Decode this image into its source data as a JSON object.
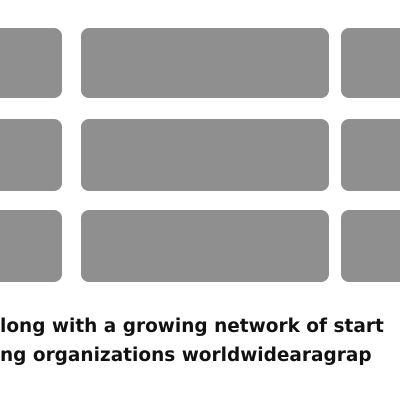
{
  "tile_grid": {
    "rows": 3,
    "columns": 3,
    "tile_color": "#8f8f8f",
    "background_color": "#ffffff"
  },
  "caption": {
    "line1": "long with a growing network of start",
    "line2": "ng organizations worldwidearagrap"
  }
}
